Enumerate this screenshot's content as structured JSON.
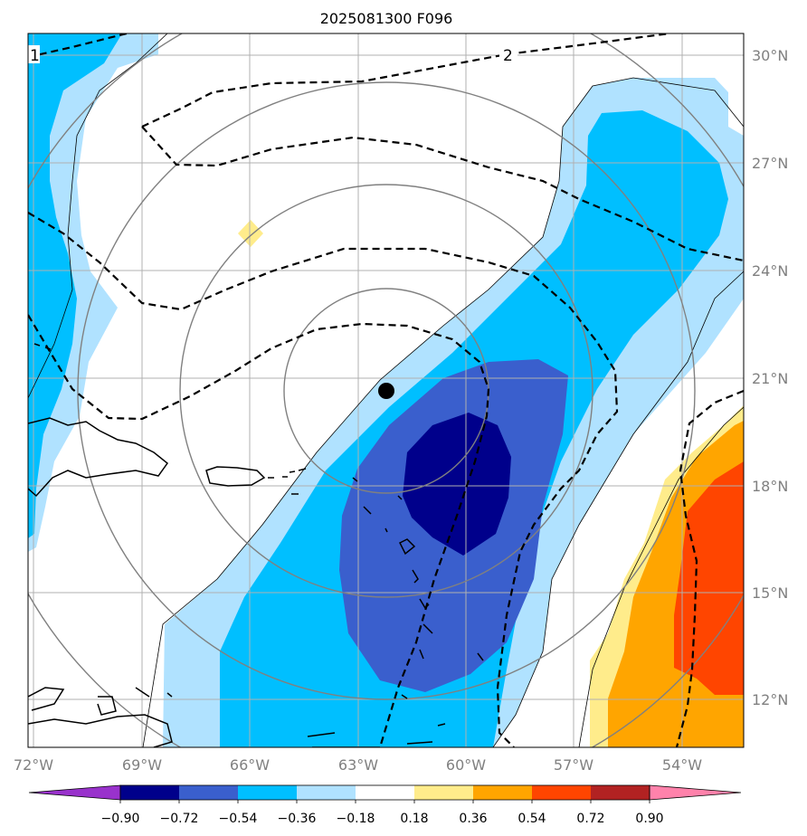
{
  "title": "2025081300 F096",
  "lon_ticks": [
    "72°W",
    "69°W",
    "66°W",
    "63°W",
    "60°W",
    "57°W",
    "54°W"
  ],
  "lat_ticks": [
    "30°N",
    "27°N",
    "24°N",
    "21°N",
    "18°N",
    "15°N",
    "12°N"
  ],
  "contour_labels": [
    "1",
    "2"
  ],
  "colorbar": {
    "tick_labels": [
      "−0.90",
      "−0.72",
      "−0.54",
      "−0.36",
      "−0.18",
      "0.18",
      "0.36",
      "0.54",
      "0.72",
      "0.90"
    ],
    "colors": [
      "#9932CC",
      "#00008B",
      "#3A5FCD",
      "#00BFFF",
      "#B0E2FF",
      "#FFFFFF",
      "#FFEC8B",
      "#FFA500",
      "#FF4500",
      "#B22222",
      "#FF82AB"
    ]
  },
  "fill_colors": {
    "lt_blue": "#B0E2FF",
    "cyan": "#00BFFF",
    "mid_blue": "#3A5FCD",
    "navy": "#00008B",
    "yellow": "#FFEC8B",
    "orange": "#FFA500",
    "red": "#FF4500"
  },
  "marker": "storm-center-dot"
}
